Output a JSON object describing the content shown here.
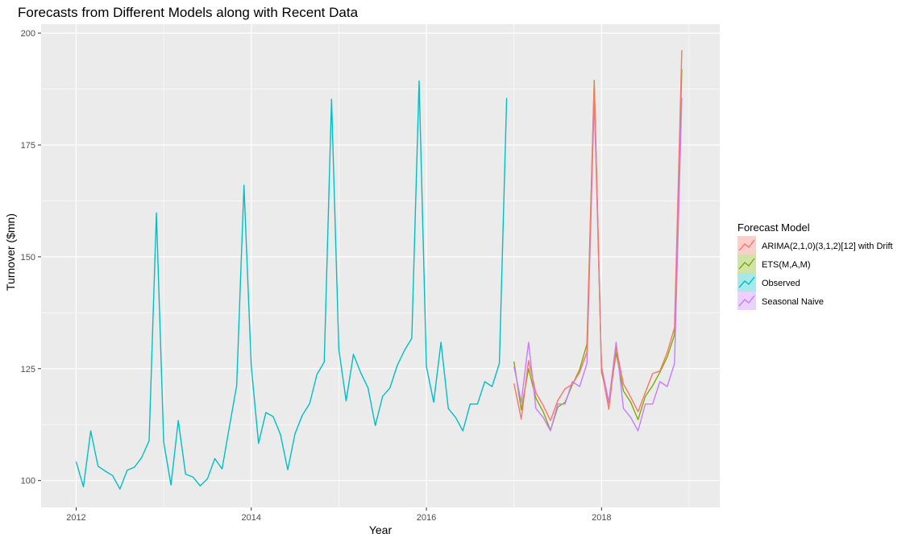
{
  "chart_data": {
    "type": "line",
    "title": "Forecasts from Different Models along with Recent Data",
    "xlabel": "Year",
    "ylabel": "Turnover ($mn)",
    "xlim": [
      2011.6,
      2019.35
    ],
    "ylim": [
      94,
      202
    ],
    "x_ticks": [
      2012,
      2014,
      2016,
      2018
    ],
    "y_ticks": [
      100,
      125,
      150,
      175,
      200
    ],
    "grid": true,
    "legend_title": "Forecast Model",
    "legend_position": "right",
    "series": [
      {
        "name": "Observed",
        "color": "#00BFC4",
        "x_start": 2012.0,
        "values": [
          104.2,
          98.6,
          111.1,
          103.2,
          102.1,
          101.1,
          98.1,
          102.3,
          103.0,
          105.2,
          108.9,
          159.8,
          108.6,
          99.0,
          113.4,
          101.4,
          100.8,
          98.8,
          100.4,
          104.9,
          102.6,
          112.0,
          121.2,
          166.0,
          125.5,
          108.3,
          115.2,
          114.3,
          110.3,
          102.4,
          110.5,
          114.6,
          117.2,
          123.7,
          126.5,
          185.2,
          129.3,
          117.8,
          128.2,
          124.1,
          120.7,
          112.3,
          118.8,
          120.7,
          125.7,
          129.1,
          131.8,
          189.3,
          125.5,
          117.5,
          130.9,
          116.1,
          114.1,
          111.1,
          117.1,
          117.1,
          122.1,
          121.0,
          126.2,
          185.5
        ]
      },
      {
        "name": "ARIMA(2,1,0)(3,1,2)[12] with Drift",
        "color": "#F8766D",
        "x_start": 2017.0,
        "values": [
          121.7,
          113.7,
          126.8,
          119.6,
          116.8,
          113.4,
          117.9,
          120.5,
          121.5,
          124.2,
          128.7,
          188.8,
          124.9,
          115.9,
          129.7,
          121.6,
          118.6,
          115.4,
          119.7,
          123.9,
          124.5,
          128.6,
          134.2,
          196.2
        ]
      },
      {
        "name": "ETS(M,A,M)",
        "color": "#7CAE00",
        "x_start": 2017.0,
        "values": [
          126.6,
          115.8,
          125.0,
          118.4,
          115.4,
          111.2,
          116.4,
          117.5,
          121.4,
          124.8,
          130.5,
          189.4,
          124.2,
          117.3,
          128.5,
          120.0,
          117.5,
          113.6,
          118.8,
          121.2,
          124.2,
          127.6,
          132.6,
          192.0
        ]
      },
      {
        "name": "Seasonal Naive",
        "color": "#C77CFF",
        "x_start": 2017.0,
        "values": [
          125.5,
          117.5,
          130.9,
          116.1,
          114.1,
          111.1,
          117.1,
          117.1,
          122.1,
          121.0,
          126.2,
          185.5,
          125.5,
          117.5,
          130.9,
          116.1,
          114.1,
          111.1,
          117.1,
          117.1,
          122.1,
          121.0,
          126.2,
          185.5
        ]
      }
    ],
    "legend": [
      {
        "label": "ARIMA(2,1,0)(3,1,2)[12] with Drift",
        "color": "#F8766D"
      },
      {
        "label": "ETS(M,A,M)",
        "color": "#7CAE00"
      },
      {
        "label": "Observed",
        "color": "#00BFC4"
      },
      {
        "label": "Seasonal Naive",
        "color": "#C77CFF"
      }
    ]
  }
}
